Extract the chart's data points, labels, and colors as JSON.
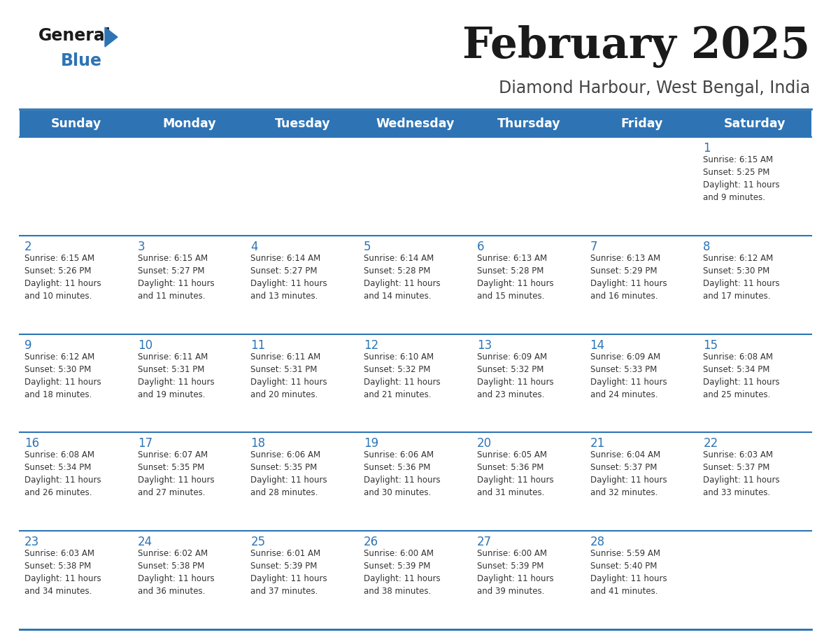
{
  "title": "February 2025",
  "subtitle": "Diamond Harbour, West Bengal, India",
  "header_bg": "#2E74B5",
  "header_text": "#FFFFFF",
  "cell_bg": "#FFFFFF",
  "row_border_color": "#2E74B5",
  "outer_border_color": "#2E74B5",
  "day_num_color": "#2E74B5",
  "content_text_color": "#333333",
  "title_color": "#1a1a1a",
  "subtitle_color": "#444444",
  "logo_general_color": "#1a1a1a",
  "logo_blue_color": "#2E74B5",
  "logo_triangle_color": "#2E74B5",
  "days_of_week": [
    "Sunday",
    "Monday",
    "Tuesday",
    "Wednesday",
    "Thursday",
    "Friday",
    "Saturday"
  ],
  "weeks": [
    [
      {
        "day": "",
        "info": ""
      },
      {
        "day": "",
        "info": ""
      },
      {
        "day": "",
        "info": ""
      },
      {
        "day": "",
        "info": ""
      },
      {
        "day": "",
        "info": ""
      },
      {
        "day": "",
        "info": ""
      },
      {
        "day": "1",
        "info": "Sunrise: 6:15 AM\nSunset: 5:25 PM\nDaylight: 11 hours\nand 9 minutes."
      }
    ],
    [
      {
        "day": "2",
        "info": "Sunrise: 6:15 AM\nSunset: 5:26 PM\nDaylight: 11 hours\nand 10 minutes."
      },
      {
        "day": "3",
        "info": "Sunrise: 6:15 AM\nSunset: 5:27 PM\nDaylight: 11 hours\nand 11 minutes."
      },
      {
        "day": "4",
        "info": "Sunrise: 6:14 AM\nSunset: 5:27 PM\nDaylight: 11 hours\nand 13 minutes."
      },
      {
        "day": "5",
        "info": "Sunrise: 6:14 AM\nSunset: 5:28 PM\nDaylight: 11 hours\nand 14 minutes."
      },
      {
        "day": "6",
        "info": "Sunrise: 6:13 AM\nSunset: 5:28 PM\nDaylight: 11 hours\nand 15 minutes."
      },
      {
        "day": "7",
        "info": "Sunrise: 6:13 AM\nSunset: 5:29 PM\nDaylight: 11 hours\nand 16 minutes."
      },
      {
        "day": "8",
        "info": "Sunrise: 6:12 AM\nSunset: 5:30 PM\nDaylight: 11 hours\nand 17 minutes."
      }
    ],
    [
      {
        "day": "9",
        "info": "Sunrise: 6:12 AM\nSunset: 5:30 PM\nDaylight: 11 hours\nand 18 minutes."
      },
      {
        "day": "10",
        "info": "Sunrise: 6:11 AM\nSunset: 5:31 PM\nDaylight: 11 hours\nand 19 minutes."
      },
      {
        "day": "11",
        "info": "Sunrise: 6:11 AM\nSunset: 5:31 PM\nDaylight: 11 hours\nand 20 minutes."
      },
      {
        "day": "12",
        "info": "Sunrise: 6:10 AM\nSunset: 5:32 PM\nDaylight: 11 hours\nand 21 minutes."
      },
      {
        "day": "13",
        "info": "Sunrise: 6:09 AM\nSunset: 5:32 PM\nDaylight: 11 hours\nand 23 minutes."
      },
      {
        "day": "14",
        "info": "Sunrise: 6:09 AM\nSunset: 5:33 PM\nDaylight: 11 hours\nand 24 minutes."
      },
      {
        "day": "15",
        "info": "Sunrise: 6:08 AM\nSunset: 5:34 PM\nDaylight: 11 hours\nand 25 minutes."
      }
    ],
    [
      {
        "day": "16",
        "info": "Sunrise: 6:08 AM\nSunset: 5:34 PM\nDaylight: 11 hours\nand 26 minutes."
      },
      {
        "day": "17",
        "info": "Sunrise: 6:07 AM\nSunset: 5:35 PM\nDaylight: 11 hours\nand 27 minutes."
      },
      {
        "day": "18",
        "info": "Sunrise: 6:06 AM\nSunset: 5:35 PM\nDaylight: 11 hours\nand 28 minutes."
      },
      {
        "day": "19",
        "info": "Sunrise: 6:06 AM\nSunset: 5:36 PM\nDaylight: 11 hours\nand 30 minutes."
      },
      {
        "day": "20",
        "info": "Sunrise: 6:05 AM\nSunset: 5:36 PM\nDaylight: 11 hours\nand 31 minutes."
      },
      {
        "day": "21",
        "info": "Sunrise: 6:04 AM\nSunset: 5:37 PM\nDaylight: 11 hours\nand 32 minutes."
      },
      {
        "day": "22",
        "info": "Sunrise: 6:03 AM\nSunset: 5:37 PM\nDaylight: 11 hours\nand 33 minutes."
      }
    ],
    [
      {
        "day": "23",
        "info": "Sunrise: 6:03 AM\nSunset: 5:38 PM\nDaylight: 11 hours\nand 34 minutes."
      },
      {
        "day": "24",
        "info": "Sunrise: 6:02 AM\nSunset: 5:38 PM\nDaylight: 11 hours\nand 36 minutes."
      },
      {
        "day": "25",
        "info": "Sunrise: 6:01 AM\nSunset: 5:39 PM\nDaylight: 11 hours\nand 37 minutes."
      },
      {
        "day": "26",
        "info": "Sunrise: 6:00 AM\nSunset: 5:39 PM\nDaylight: 11 hours\nand 38 minutes."
      },
      {
        "day": "27",
        "info": "Sunrise: 6:00 AM\nSunset: 5:39 PM\nDaylight: 11 hours\nand 39 minutes."
      },
      {
        "day": "28",
        "info": "Sunrise: 5:59 AM\nSunset: 5:40 PM\nDaylight: 11 hours\nand 41 minutes."
      },
      {
        "day": "",
        "info": ""
      }
    ]
  ],
  "figsize": [
    11.88,
    9.18
  ],
  "dpi": 100
}
